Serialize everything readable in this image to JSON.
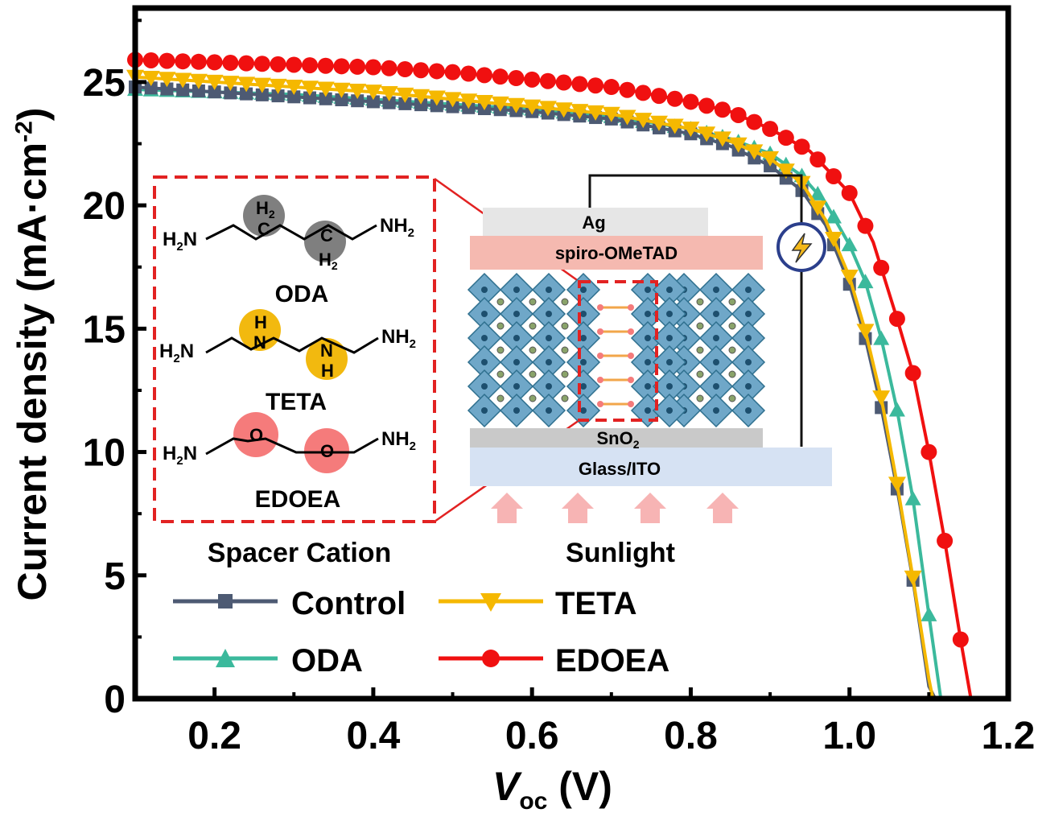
{
  "chart_data": {
    "type": "line",
    "xlabel": {
      "italic": "V",
      "sub": "oc",
      "rest": " (V)"
    },
    "ylabel": {
      "main": "Current density (mA·cm",
      "sup": "-2",
      "end": ")"
    },
    "xlim": [
      0.1,
      1.2
    ],
    "ylim": [
      0,
      28
    ],
    "xticks": [
      "0.2",
      "0.4",
      "0.6",
      "0.8",
      "1.0",
      "1.2"
    ],
    "yticks": [
      "0",
      "5",
      "10",
      "15",
      "20",
      "25"
    ],
    "legend_position": "bottom-left",
    "series": [
      {
        "name": "Control",
        "color": "#4d5a73",
        "marker": "square",
        "x": [
          0.1,
          0.2,
          0.3,
          0.4,
          0.5,
          0.6,
          0.7,
          0.8,
          0.85,
          0.9,
          0.94,
          0.97,
          1.0,
          1.02,
          1.04,
          1.06,
          1.08,
          1.1,
          1.108
        ],
        "y": [
          24.8,
          24.6,
          24.4,
          24.2,
          24.0,
          23.8,
          23.5,
          22.9,
          22.4,
          21.6,
          20.6,
          19.2,
          16.8,
          14.6,
          11.8,
          8.5,
          4.8,
          0.5,
          0.0
        ]
      },
      {
        "name": "ODA",
        "color": "#3bb99c",
        "marker": "triangle-up",
        "x": [
          0.1,
          0.2,
          0.3,
          0.4,
          0.5,
          0.6,
          0.7,
          0.8,
          0.85,
          0.9,
          0.94,
          0.97,
          1.0,
          1.02,
          1.04,
          1.06,
          1.08,
          1.1,
          1.115
        ],
        "y": [
          24.7,
          24.6,
          24.5,
          24.3,
          24.1,
          23.9,
          23.6,
          23.1,
          22.7,
          22.1,
          21.2,
          20.1,
          18.4,
          16.9,
          14.6,
          11.7,
          8.1,
          3.4,
          0.0
        ]
      },
      {
        "name": "TETA",
        "color": "#f5b800",
        "marker": "triangle-down",
        "x": [
          0.1,
          0.2,
          0.3,
          0.4,
          0.5,
          0.6,
          0.7,
          0.8,
          0.85,
          0.9,
          0.94,
          0.97,
          1.0,
          1.02,
          1.04,
          1.06,
          1.08,
          1.1,
          1.105
        ],
        "y": [
          25.2,
          25.0,
          24.8,
          24.6,
          24.3,
          24.0,
          23.7,
          23.1,
          22.6,
          21.9,
          20.9,
          19.4,
          17.1,
          14.9,
          12.2,
          8.7,
          4.9,
          0.8,
          0.0
        ]
      },
      {
        "name": "EDOEA",
        "color": "#f01010",
        "marker": "circle",
        "x": [
          0.1,
          0.2,
          0.3,
          0.4,
          0.5,
          0.6,
          0.7,
          0.8,
          0.85,
          0.9,
          0.95,
          1.0,
          1.03,
          1.06,
          1.08,
          1.1,
          1.12,
          1.14,
          1.153
        ],
        "y": [
          25.9,
          25.8,
          25.7,
          25.6,
          25.4,
          25.1,
          24.8,
          24.2,
          23.8,
          23.1,
          22.2,
          20.5,
          18.5,
          15.4,
          13.2,
          10.0,
          6.4,
          2.4,
          0.0
        ]
      }
    ]
  },
  "inset": {
    "spacer_title": "Spacer Cation",
    "molecules": [
      {
        "name": "ODA",
        "left": "H2N",
        "right": "NH2",
        "group": "C",
        "group_h": "H2"
      },
      {
        "name": "TETA",
        "left": "H2N",
        "right": "NH2",
        "group": "N",
        "group_h": "H"
      },
      {
        "name": "EDOEA",
        "left": "H2N",
        "right": "NH2",
        "group": "O",
        "group_h": ""
      }
    ],
    "device_layers": [
      "Ag",
      "spiro-OMeTAD",
      "SnO2",
      "Glass/ITO"
    ],
    "sunlight_label": "Sunlight",
    "colors": {
      "ODA": "#7f7f7f",
      "TETA": "#f2b90f",
      "EDOEA": "#f57b7b",
      "dash": "#e22222"
    }
  }
}
